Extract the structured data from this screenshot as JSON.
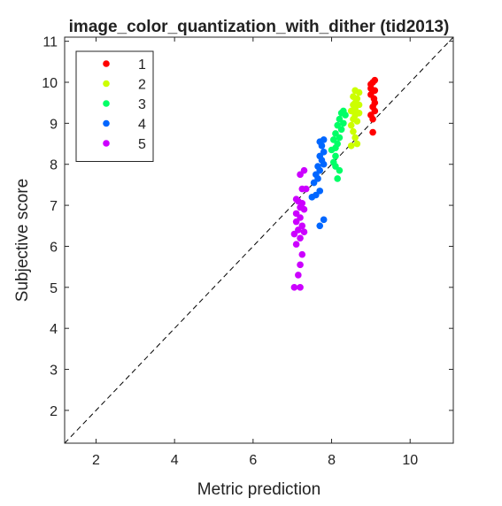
{
  "chart_data": {
    "type": "scatter",
    "title": "image_color_quantization_with_dither (tid2013)",
    "xlabel": "Metric prediction",
    "ylabel": "Subjective score",
    "xlim": [
      1.2,
      11.1
    ],
    "ylim": [
      1.2,
      11.1
    ],
    "xticks": [
      2,
      4,
      6,
      8,
      10
    ],
    "yticks": [
      2,
      3,
      4,
      5,
      6,
      7,
      8,
      9,
      10,
      11
    ],
    "grid": false,
    "legend_position": "top-left",
    "reference_line": "diagonal y = x (dashed)",
    "series": [
      {
        "name": "1",
        "color": "#ff0000",
        "points": [
          [
            9.0,
            9.95
          ],
          [
            9.05,
            10.0
          ],
          [
            9.1,
            10.05
          ],
          [
            9.0,
            9.85
          ],
          [
            9.1,
            9.8
          ],
          [
            9.0,
            9.7
          ],
          [
            9.08,
            9.6
          ],
          [
            9.1,
            9.5
          ],
          [
            9.05,
            9.4
          ],
          [
            9.1,
            9.3
          ],
          [
            9.0,
            9.2
          ],
          [
            9.05,
            9.1
          ],
          [
            9.05,
            8.78
          ]
        ]
      },
      {
        "name": "2",
        "color": "#ccff00",
        "points": [
          [
            8.6,
            9.8
          ],
          [
            8.7,
            9.75
          ],
          [
            8.55,
            9.65
          ],
          [
            8.65,
            9.6
          ],
          [
            8.6,
            9.5
          ],
          [
            8.55,
            9.45
          ],
          [
            8.7,
            9.45
          ],
          [
            8.6,
            9.35
          ],
          [
            8.5,
            9.3
          ],
          [
            8.7,
            9.25
          ],
          [
            8.6,
            9.2
          ],
          [
            8.55,
            9.1
          ],
          [
            8.65,
            9.05
          ],
          [
            8.5,
            8.95
          ],
          [
            8.55,
            8.8
          ],
          [
            8.6,
            8.65
          ],
          [
            8.65,
            8.5
          ],
          [
            8.5,
            8.45
          ]
        ]
      },
      {
        "name": "3",
        "color": "#00ff66",
        "points": [
          [
            8.3,
            9.3
          ],
          [
            8.25,
            9.25
          ],
          [
            8.35,
            9.2
          ],
          [
            8.2,
            9.1
          ],
          [
            8.3,
            9.0
          ],
          [
            8.15,
            8.95
          ],
          [
            8.25,
            8.85
          ],
          [
            8.1,
            8.75
          ],
          [
            8.2,
            8.65
          ],
          [
            8.05,
            8.6
          ],
          [
            8.15,
            8.5
          ],
          [
            8.1,
            8.4
          ],
          [
            8.0,
            8.35
          ],
          [
            8.1,
            8.2
          ],
          [
            8.05,
            8.05
          ],
          [
            8.1,
            7.95
          ],
          [
            8.2,
            7.85
          ],
          [
            8.15,
            7.65
          ]
        ]
      },
      {
        "name": "4",
        "color": "#0066ff",
        "points": [
          [
            7.8,
            8.6
          ],
          [
            7.7,
            8.55
          ],
          [
            7.75,
            8.45
          ],
          [
            7.8,
            8.3
          ],
          [
            7.7,
            8.2
          ],
          [
            7.75,
            8.1
          ],
          [
            7.8,
            8.0
          ],
          [
            7.65,
            7.95
          ],
          [
            7.7,
            7.85
          ],
          [
            7.6,
            7.75
          ],
          [
            7.65,
            7.65
          ],
          [
            7.55,
            7.55
          ],
          [
            7.7,
            7.35
          ],
          [
            7.6,
            7.25
          ],
          [
            7.5,
            7.2
          ],
          [
            7.8,
            6.65
          ],
          [
            7.7,
            6.5
          ]
        ]
      },
      {
        "name": "5",
        "color": "#cc00ff",
        "points": [
          [
            7.3,
            7.85
          ],
          [
            7.2,
            7.75
          ],
          [
            7.25,
            7.4
          ],
          [
            7.35,
            7.4
          ],
          [
            7.1,
            7.15
          ],
          [
            7.15,
            7.1
          ],
          [
            7.25,
            7.05
          ],
          [
            7.2,
            6.95
          ],
          [
            7.3,
            6.9
          ],
          [
            7.1,
            6.8
          ],
          [
            7.2,
            6.7
          ],
          [
            7.1,
            6.6
          ],
          [
            7.25,
            6.5
          ],
          [
            7.15,
            6.4
          ],
          [
            7.3,
            6.35
          ],
          [
            7.05,
            6.3
          ],
          [
            7.2,
            6.2
          ],
          [
            7.1,
            6.05
          ],
          [
            7.25,
            5.8
          ],
          [
            7.2,
            5.55
          ],
          [
            7.15,
            5.3
          ],
          [
            7.05,
            5.0
          ],
          [
            7.2,
            5.0
          ]
        ]
      }
    ]
  }
}
